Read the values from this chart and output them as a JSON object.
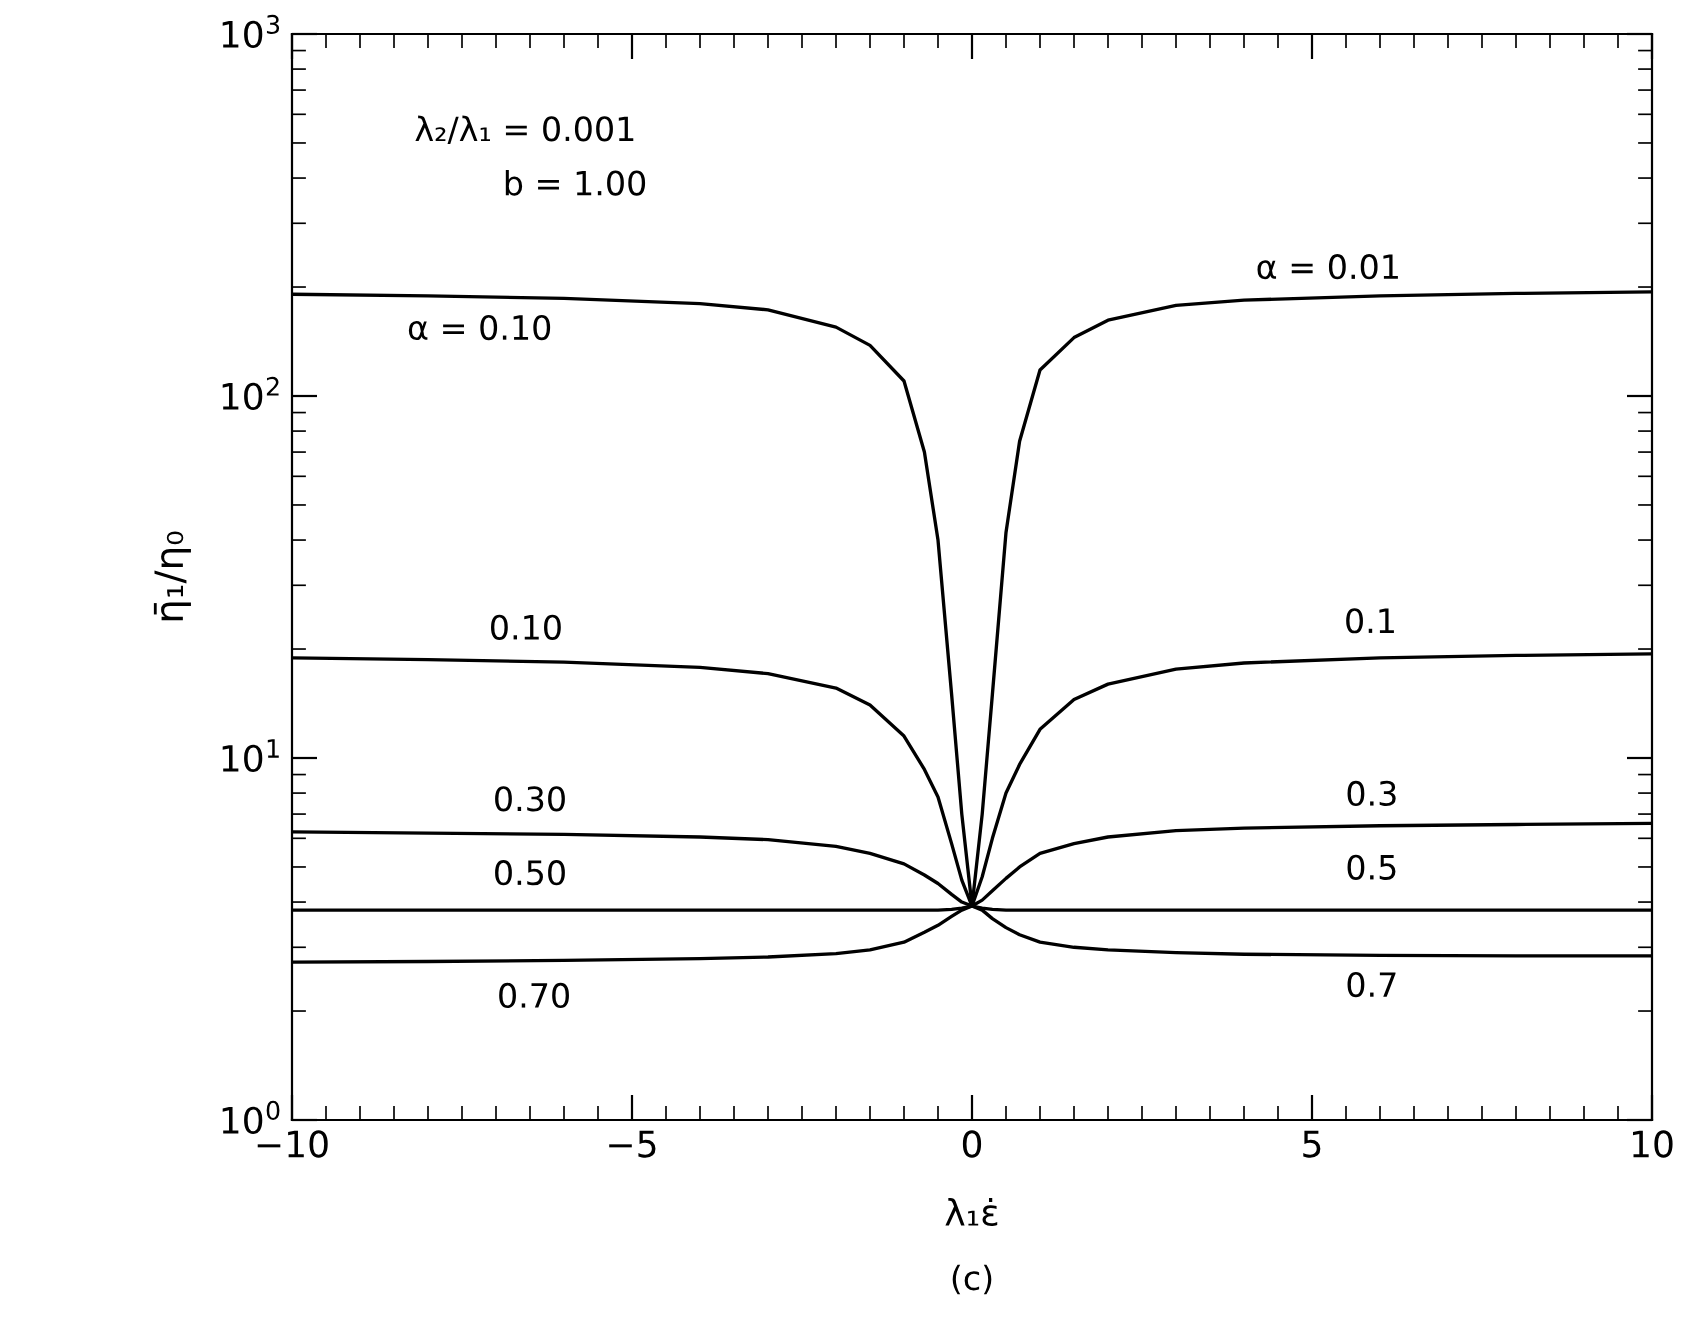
{
  "chart_data": {
    "type": "line",
    "xlabel": "λ₁ε̇",
    "ylabel": "η̄₁/η₀",
    "log": "y",
    "grid": false,
    "marker": "none",
    "line_style": "solid",
    "xlim": [
      -10,
      10
    ],
    "xticks": [
      {
        "value": -10,
        "label": "−10"
      },
      {
        "value": -5,
        "label": "−5"
      },
      0,
      5,
      10
    ],
    "ylim": [
      1,
      1000
    ],
    "yticks": [
      {
        "value": 1,
        "label": "10$^{0}$"
      },
      {
        "value": 10,
        "label": "10$^{1}$"
      },
      {
        "value": 100,
        "label": "10$^{2}$"
      },
      {
        "value": 1000,
        "label": "10$^{3}$"
      }
    ],
    "x": [
      -10,
      -8,
      -6,
      -4,
      -3,
      -2,
      -1.5,
      -1,
      -0.7,
      -0.5,
      -0.3,
      -0.15,
      0,
      0.15,
      0.3,
      0.5,
      0.7,
      1,
      1.5,
      2,
      3,
      4,
      6,
      8,
      10
    ],
    "series": [
      {
        "color": "#000000",
        "values": [
          191,
          189,
          186,
          180,
          173,
          155,
          138,
          110,
          70,
          40,
          15,
          7,
          3.9,
          7,
          15,
          42,
          75,
          118,
          145,
          162,
          178,
          184,
          189,
          192,
          194
        ]
      },
      {
        "color": "#000000",
        "values": [
          18.9,
          18.7,
          18.4,
          17.8,
          17.1,
          15.6,
          14,
          11.5,
          9.3,
          7.8,
          5.8,
          4.6,
          3.9,
          4.7,
          6,
          8,
          9.6,
          12,
          14.5,
          16,
          17.6,
          18.3,
          18.9,
          19.2,
          19.4
        ]
      },
      {
        "color": "#000000",
        "values": [
          6.25,
          6.2,
          6.15,
          6.05,
          5.95,
          5.7,
          5.45,
          5.1,
          4.75,
          4.5,
          4.2,
          4.0,
          3.9,
          4.05,
          4.3,
          4.65,
          5,
          5.45,
          5.8,
          6.05,
          6.3,
          6.4,
          6.5,
          6.55,
          6.6
        ]
      },
      {
        "color": "#000000",
        "values": [
          3.8,
          3.8,
          3.8,
          3.8,
          3.8,
          3.8,
          3.8,
          3.8,
          3.8,
          3.8,
          3.82,
          3.85,
          3.9,
          3.85,
          3.82,
          3.8,
          3.8,
          3.8,
          3.8,
          3.8,
          3.8,
          3.8,
          3.8,
          3.8,
          3.8
        ]
      },
      {
        "color": "#000000",
        "values": [
          2.73,
          2.74,
          2.76,
          2.79,
          2.82,
          2.88,
          2.95,
          3.1,
          3.3,
          3.45,
          3.65,
          3.8,
          3.9,
          3.8,
          3.6,
          3.4,
          3.25,
          3.1,
          3.0,
          2.95,
          2.9,
          2.87,
          2.85,
          2.84,
          2.84
        ]
      }
    ],
    "annotations": [
      "λ₂/λ₁ = 0.001",
      "b = 1.00",
      "(c)",
      "α = 0.10",
      "α = 0.01",
      "0.10",
      "0.1",
      "0.30",
      "0.3",
      "0.50",
      "0.5",
      "0.70",
      "0.7"
    ]
  }
}
